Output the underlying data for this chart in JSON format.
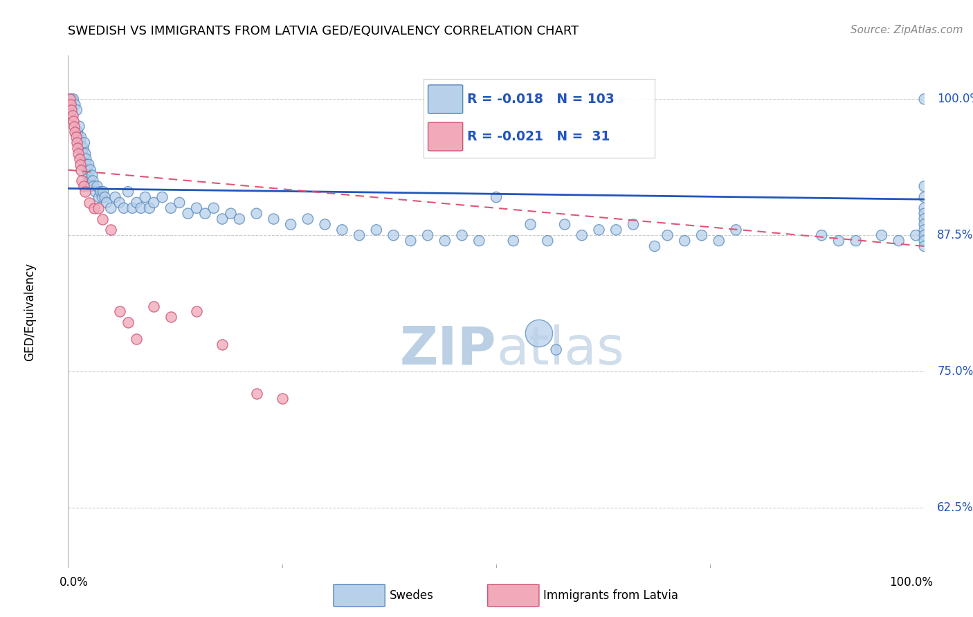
{
  "title": "SWEDISH VS IMMIGRANTS FROM LATVIA GED/EQUIVALENCY CORRELATION CHART",
  "source": "Source: ZipAtlas.com",
  "ylabel": "GED/Equivalency",
  "yticks": [
    62.5,
    75.0,
    87.5,
    100.0
  ],
  "ytick_labels": [
    "62.5%",
    "75.0%",
    "87.5%",
    "100.0%"
  ],
  "xmin": 0.0,
  "xmax": 100.0,
  "ymin": 57.0,
  "ymax": 104.0,
  "blue_R": -0.018,
  "blue_N": 103,
  "pink_R": -0.021,
  "pink_N": 31,
  "blue_fill": "#b8d0ea",
  "blue_edge": "#5588bb",
  "pink_fill": "#f2aabb",
  "pink_edge": "#cc5577",
  "blue_line_color": "#2255bb",
  "pink_line_color": "#dd5577",
  "grid_color": "#cccccc",
  "watermark_color": "#c8d8e8",
  "legend_blue_label": "Swedes",
  "legend_pink_label": "Immigrants from Latvia",
  "blue_trend_start_y": 91.8,
  "blue_trend_end_y": 90.8,
  "pink_trend_start_y": 93.5,
  "pink_trend_end_y": 86.5,
  "blue_x": [
    0.3,
    0.4,
    0.6,
    0.8,
    1.0,
    1.1,
    1.2,
    1.3,
    1.4,
    1.5,
    1.6,
    1.7,
    1.8,
    1.9,
    2.0,
    2.1,
    2.1,
    2.2,
    2.3,
    2.4,
    2.5,
    2.6,
    2.7,
    2.8,
    2.9,
    3.0,
    3.2,
    3.4,
    3.6,
    3.8,
    4.0,
    4.1,
    4.3,
    4.5,
    5.0,
    5.5,
    6.0,
    6.5,
    7.0,
    7.5,
    8.0,
    8.5,
    9.0,
    9.5,
    10.0,
    11.0,
    12.0,
    13.0,
    14.0,
    15.0,
    16.0,
    17.0,
    18.0,
    19.0,
    20.0,
    22.0,
    24.0,
    26.0,
    28.0,
    30.0,
    32.0,
    34.0,
    36.0,
    38.0,
    40.0,
    42.0,
    44.0,
    46.0,
    48.0,
    50.0,
    52.0,
    54.0,
    56.0,
    58.0,
    60.0,
    62.0,
    64.0,
    66.0,
    68.5,
    70.0,
    72.0,
    74.0,
    76.0,
    78.0,
    55.0,
    57.0,
    88.0,
    90.0,
    92.0,
    95.0,
    97.0,
    99.0,
    100.0,
    100.0,
    100.0,
    100.0,
    100.0,
    100.0,
    100.0,
    100.0,
    100.0,
    100.0,
    100.0
  ],
  "blue_y": [
    100.0,
    100.0,
    100.0,
    99.5,
    99.0,
    97.0,
    96.5,
    97.5,
    96.0,
    96.5,
    95.5,
    95.0,
    95.5,
    96.0,
    95.0,
    94.5,
    94.0,
    93.5,
    93.0,
    94.0,
    92.5,
    93.5,
    92.0,
    93.0,
    92.5,
    92.0,
    91.5,
    92.0,
    91.0,
    91.5,
    91.0,
    91.5,
    91.0,
    90.5,
    90.0,
    91.0,
    90.5,
    90.0,
    91.5,
    90.0,
    90.5,
    90.0,
    91.0,
    90.0,
    90.5,
    91.0,
    90.0,
    90.5,
    89.5,
    90.0,
    89.5,
    90.0,
    89.0,
    89.5,
    89.0,
    89.5,
    89.0,
    88.5,
    89.0,
    88.5,
    88.0,
    87.5,
    88.0,
    87.5,
    87.0,
    87.5,
    87.0,
    87.5,
    87.0,
    91.0,
    87.0,
    88.5,
    87.0,
    88.5,
    87.5,
    88.0,
    88.0,
    88.5,
    86.5,
    87.5,
    87.0,
    87.5,
    87.0,
    88.0,
    78.5,
    77.0,
    87.5,
    87.0,
    87.0,
    87.5,
    87.0,
    87.5,
    100.0,
    92.0,
    91.0,
    90.0,
    89.5,
    89.0,
    88.5,
    88.0,
    87.5,
    87.0,
    86.5
  ],
  "pink_x": [
    0.2,
    0.3,
    0.4,
    0.5,
    0.6,
    0.7,
    0.8,
    0.9,
    1.0,
    1.1,
    1.2,
    1.3,
    1.4,
    1.5,
    1.6,
    1.8,
    2.0,
    2.5,
    3.0,
    3.5,
    4.0,
    5.0,
    6.0,
    7.0,
    8.0,
    10.0,
    12.0,
    15.0,
    18.0,
    22.0,
    25.0
  ],
  "pink_y": [
    100.0,
    99.5,
    99.0,
    98.5,
    98.0,
    97.5,
    97.0,
    96.5,
    96.0,
    95.5,
    95.0,
    94.5,
    94.0,
    93.5,
    92.5,
    92.0,
    91.5,
    90.5,
    90.0,
    90.0,
    89.0,
    88.0,
    80.5,
    79.5,
    78.0,
    81.0,
    80.0,
    80.5,
    77.5,
    73.0,
    72.5
  ]
}
